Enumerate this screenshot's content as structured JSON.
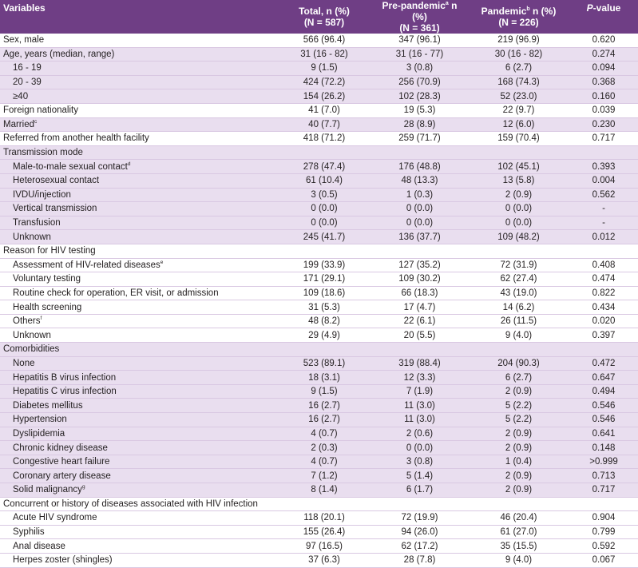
{
  "header": {
    "variables": "Variables",
    "total_line1": "Total, n (%)",
    "total_line2": "(N = 587)",
    "pre_label": "Pre-pandemic",
    "pre_sup": "a",
    "pre_suffix": " n (%)",
    "pre_line2": "(N = 361)",
    "pan_label": "Pandemic",
    "pan_sup": "b",
    "pan_suffix": " n (%)",
    "pan_line2": "(N = 226)",
    "pvalue_p": "P",
    "pvalue_rest": "-value"
  },
  "rows": [
    {
      "label": "Sex, male",
      "sup": "",
      "level": 0,
      "shade": false,
      "total": "566 (96.4)",
      "pre": "347 (96.1)",
      "pan": "219 (96.9)",
      "p": "0.620"
    },
    {
      "label": "Age, years (median, range)",
      "sup": "",
      "level": 0,
      "shade": true,
      "total": "31 (16 - 82)",
      "pre": "31 (16 - 77)",
      "pan": "30 (16 - 82)",
      "p": "0.274"
    },
    {
      "label": "16 - 19",
      "sup": "",
      "level": 1,
      "shade": true,
      "total": "9 (1.5)",
      "pre": "3 (0.8)",
      "pan": "6 (2.7)",
      "p": "0.094"
    },
    {
      "label": "20 - 39",
      "sup": "",
      "level": 1,
      "shade": true,
      "total": "424 (72.2)",
      "pre": "256 (70.9)",
      "pan": "168 (74.3)",
      "p": "0.368"
    },
    {
      "label": "≥40",
      "sup": "",
      "level": 1,
      "shade": true,
      "total": "154 (26.2)",
      "pre": "102 (28.3)",
      "pan": "52 (23.0)",
      "p": "0.160"
    },
    {
      "label": "Foreign nationality",
      "sup": "",
      "level": 0,
      "shade": false,
      "total": "41 (7.0)",
      "pre": "19 (5.3)",
      "pan": "22 (9.7)",
      "p": "0.039"
    },
    {
      "label": "Married",
      "sup": "c",
      "level": 0,
      "shade": true,
      "total": "40 (7.7)",
      "pre": "28 (8.9)",
      "pan": "12 (6.0)",
      "p": "0.230"
    },
    {
      "label": "Referred from another health facility",
      "sup": "",
      "level": 0,
      "shade": false,
      "total": "418 (71.2)",
      "pre": "259 (71.7)",
      "pan": "159 (70.4)",
      "p": "0.717"
    },
    {
      "label": "Transmission mode",
      "sup": "",
      "level": 0,
      "shade": true,
      "total": "",
      "pre": "",
      "pan": "",
      "p": ""
    },
    {
      "label": "Male-to-male sexual contact",
      "sup": "d",
      "level": 1,
      "shade": true,
      "total": "278 (47.4)",
      "pre": "176 (48.8)",
      "pan": "102 (45.1)",
      "p": "0.393"
    },
    {
      "label": "Heterosexual contact",
      "sup": "",
      "level": 1,
      "shade": true,
      "total": "61 (10.4)",
      "pre": "48 (13.3)",
      "pan": "13 (5.8)",
      "p": "0.004"
    },
    {
      "label": "IVDU/injection",
      "sup": "",
      "level": 1,
      "shade": true,
      "total": "3 (0.5)",
      "pre": "1 (0.3)",
      "pan": "2 (0.9)",
      "p": "0.562"
    },
    {
      "label": "Vertical transmission",
      "sup": "",
      "level": 1,
      "shade": true,
      "total": "0 (0.0)",
      "pre": "0 (0.0)",
      "pan": "0 (0.0)",
      "p": "-"
    },
    {
      "label": "Transfusion",
      "sup": "",
      "level": 1,
      "shade": true,
      "total": "0 (0.0)",
      "pre": "0 (0.0)",
      "pan": "0 (0.0)",
      "p": "-"
    },
    {
      "label": "Unknown",
      "sup": "",
      "level": 1,
      "shade": true,
      "total": "245 (41.7)",
      "pre": "136 (37.7)",
      "pan": "109 (48.2)",
      "p": "0.012"
    },
    {
      "label": "Reason for HIV testing",
      "sup": "",
      "level": 0,
      "shade": false,
      "total": "",
      "pre": "",
      "pan": "",
      "p": ""
    },
    {
      "label": "Assessment of HIV-related diseases",
      "sup": "e",
      "level": 1,
      "shade": false,
      "total": "199 (33.9)",
      "pre": "127 (35.2)",
      "pan": "72 (31.9)",
      "p": "0.408"
    },
    {
      "label": "Voluntary testing",
      "sup": "",
      "level": 1,
      "shade": false,
      "total": "171 (29.1)",
      "pre": "109 (30.2)",
      "pan": "62 (27.4)",
      "p": "0.474"
    },
    {
      "label": "Routine check for operation, ER visit, or admission",
      "sup": "",
      "level": 1,
      "shade": false,
      "total": "109 (18.6)",
      "pre": "66 (18.3)",
      "pan": "43 (19.0)",
      "p": "0.822"
    },
    {
      "label": "Health screening",
      "sup": "",
      "level": 1,
      "shade": false,
      "total": "31 (5.3)",
      "pre": "17 (4.7)",
      "pan": "14 (6.2)",
      "p": "0.434"
    },
    {
      "label": "Others",
      "sup": "f",
      "level": 1,
      "shade": false,
      "total": "48 (8.2)",
      "pre": "22 (6.1)",
      "pan": "26 (11.5)",
      "p": "0.020"
    },
    {
      "label": "Unknown",
      "sup": "",
      "level": 1,
      "shade": false,
      "total": "29 (4.9)",
      "pre": "20 (5.5)",
      "pan": "9 (4.0)",
      "p": "0.397"
    },
    {
      "label": "Comorbidities",
      "sup": "",
      "level": 0,
      "shade": true,
      "total": "",
      "pre": "",
      "pan": "",
      "p": ""
    },
    {
      "label": "None",
      "sup": "",
      "level": 1,
      "shade": true,
      "total": "523 (89.1)",
      "pre": "319 (88.4)",
      "pan": "204 (90.3)",
      "p": "0.472"
    },
    {
      "label": "Hepatitis B virus infection",
      "sup": "",
      "level": 1,
      "shade": true,
      "total": "18 (3.1)",
      "pre": "12 (3.3)",
      "pan": "6 (2.7)",
      "p": "0.647"
    },
    {
      "label": "Hepatitis C virus infection",
      "sup": "",
      "level": 1,
      "shade": true,
      "total": "9 (1.5)",
      "pre": "7 (1.9)",
      "pan": "2 (0.9)",
      "p": "0.494"
    },
    {
      "label": "Diabetes mellitus",
      "sup": "",
      "level": 1,
      "shade": true,
      "total": "16 (2.7)",
      "pre": "11 (3.0)",
      "pan": "5 (2.2)",
      "p": "0.546"
    },
    {
      "label": "Hypertension",
      "sup": "",
      "level": 1,
      "shade": true,
      "total": "16 (2.7)",
      "pre": "11 (3.0)",
      "pan": "5 (2.2)",
      "p": "0.546"
    },
    {
      "label": "Dyslipidemia",
      "sup": "",
      "level": 1,
      "shade": true,
      "total": "4 (0.7)",
      "pre": "2 (0.6)",
      "pan": "2 (0.9)",
      "p": "0.641"
    },
    {
      "label": "Chronic kidney disease",
      "sup": "",
      "level": 1,
      "shade": true,
      "total": "2 (0.3)",
      "pre": "0 (0.0)",
      "pan": "2 (0.9)",
      "p": "0.148"
    },
    {
      "label": "Congestive heart failure",
      "sup": "",
      "level": 1,
      "shade": true,
      "total": "4 (0.7)",
      "pre": "3 (0.8)",
      "pan": "1 (0.4)",
      "p": ">0.999"
    },
    {
      "label": "Coronary artery disease",
      "sup": "",
      "level": 1,
      "shade": true,
      "total": "7 (1.2)",
      "pre": "5 (1.4)",
      "pan": "2 (0.9)",
      "p": "0.713"
    },
    {
      "label": "Solid malignancy",
      "sup": "g",
      "level": 1,
      "shade": true,
      "total": "8 (1.4)",
      "pre": "6 (1.7)",
      "pan": "2 (0.9)",
      "p": "0.717"
    },
    {
      "label": "Concurrent or history of diseases associated with HIV infection",
      "sup": "",
      "level": 0,
      "shade": false,
      "total": "",
      "pre": "",
      "pan": "",
      "p": ""
    },
    {
      "label": "Acute HIV syndrome",
      "sup": "",
      "level": 1,
      "shade": false,
      "total": "118 (20.1)",
      "pre": "72 (19.9)",
      "pan": "46 (20.4)",
      "p": "0.904"
    },
    {
      "label": "Syphilis",
      "sup": "",
      "level": 1,
      "shade": false,
      "total": "155 (26.4)",
      "pre": "94 (26.0)",
      "pan": "61 (27.0)",
      "p": "0.799"
    },
    {
      "label": "Anal disease",
      "sup": "",
      "level": 1,
      "shade": false,
      "total": "97 (16.5)",
      "pre": "62 (17.2)",
      "pan": "35 (15.5)",
      "p": "0.592"
    },
    {
      "label": "Herpes zoster (shingles)",
      "sup": "",
      "level": 1,
      "shade": false,
      "total": "37 (6.3)",
      "pre": "28 (7.8)",
      "pan": "9 (4.0)",
      "p": "0.067"
    }
  ]
}
